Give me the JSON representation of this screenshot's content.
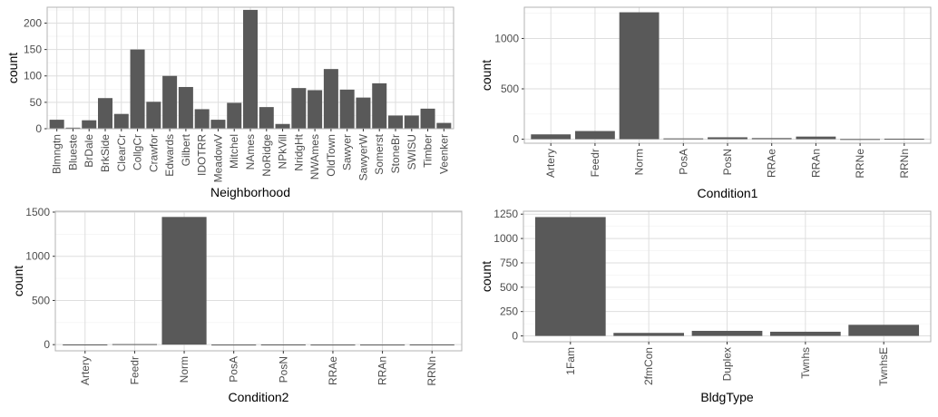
{
  "chart_data": [
    {
      "type": "bar",
      "xlabel": "Neighborhood",
      "ylabel": "count",
      "ylim": [
        0,
        230
      ],
      "yticks": [
        0,
        50,
        100,
        150,
        200
      ],
      "grid": true,
      "categories": [
        "Blmngtn",
        "Blueste",
        "BrDale",
        "BrkSide",
        "ClearCr",
        "CollgCr",
        "Crawfor",
        "Edwards",
        "Gilbert",
        "IDOTRR",
        "MeadowV",
        "Mitchel",
        "NAmes",
        "NoRidge",
        "NPkVill",
        "NridgHt",
        "NWAmes",
        "OldTown",
        "Sawyer",
        "SawyerW",
        "Somerst",
        "StoneBr",
        "SWISU",
        "Timber",
        "Veenker"
      ],
      "values": [
        17,
        2,
        16,
        58,
        28,
        150,
        51,
        100,
        79,
        37,
        17,
        49,
        225,
        41,
        9,
        77,
        73,
        113,
        74,
        59,
        86,
        25,
        25,
        38,
        11
      ],
      "bar_color": "#595959"
    },
    {
      "type": "bar",
      "xlabel": "Condition1",
      "ylabel": "count",
      "ylim": [
        -40,
        1310
      ],
      "yticks": [
        0,
        500,
        1000
      ],
      "grid": true,
      "categories": [
        "Artery",
        "Feedr",
        "Norm",
        "PosA",
        "PosN",
        "RRAe",
        "RRAn",
        "RRNe",
        "RRNn"
      ],
      "values": [
        48,
        81,
        1260,
        8,
        19,
        11,
        26,
        2,
        5
      ],
      "bar_color": "#595959"
    },
    {
      "type": "bar",
      "xlabel": "Condition2",
      "ylabel": "count",
      "ylim": [
        -70,
        1510
      ],
      "yticks": [
        0,
        500,
        1000,
        1500
      ],
      "grid": true,
      "categories": [
        "Artery",
        "Feedr",
        "Norm",
        "PosA",
        "PosN",
        "RRAe",
        "RRAn",
        "RRNn"
      ],
      "values": [
        2,
        6,
        1445,
        1,
        2,
        1,
        1,
        2
      ],
      "bar_color": "#595959"
    },
    {
      "type": "bar",
      "xlabel": "BldgType",
      "ylabel": "count",
      "ylim": [
        -60,
        1280
      ],
      "yticks": [
        0,
        250,
        500,
        750,
        1000,
        1250
      ],
      "grid": true,
      "categories": [
        "1Fam",
        "2fmCon",
        "Duplex",
        "Twnhs",
        "TwnhsE"
      ],
      "values": [
        1220,
        31,
        52,
        43,
        114
      ],
      "bar_color": "#595959"
    }
  ]
}
